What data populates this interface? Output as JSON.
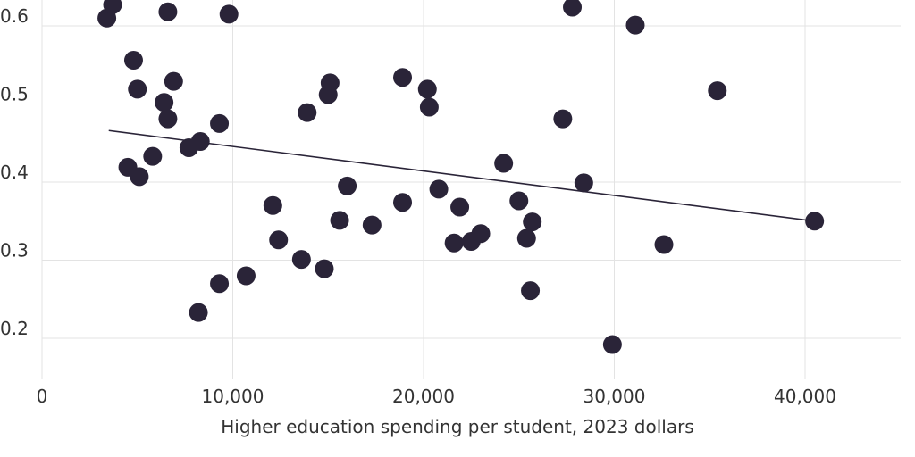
{
  "chart_data": {
    "type": "scatter",
    "xlabel": "Higher education spending per student, 2023 dollars",
    "ylabel": "",
    "xlim": [
      0,
      45000
    ],
    "ylim": [
      0.15,
      0.62
    ],
    "x_ticks": [
      {
        "value": 0,
        "label": "0"
      },
      {
        "value": 10000,
        "label": "10,000"
      },
      {
        "value": 20000,
        "label": "20,000"
      },
      {
        "value": 30000,
        "label": "30,000"
      },
      {
        "value": 40000,
        "label": "40,000"
      }
    ],
    "y_ticks": [
      {
        "value": 0.2,
        "label": "0.2"
      },
      {
        "value": 0.3,
        "label": "0.3"
      },
      {
        "value": 0.4,
        "label": "0.4"
      },
      {
        "value": 0.5,
        "label": "0.5"
      },
      {
        "value": 0.6,
        "label": "0.6"
      }
    ],
    "grid": true,
    "point_color": "#2a2438",
    "trendline": {
      "x": [
        3500,
        40500
      ],
      "y": [
        0.466,
        0.35
      ]
    },
    "points": [
      {
        "x": 3400,
        "y": 0.61
      },
      {
        "x": 3700,
        "y": 0.627
      },
      {
        "x": 6600,
        "y": 0.618
      },
      {
        "x": 9800,
        "y": 0.615
      },
      {
        "x": 27800,
        "y": 0.624
      },
      {
        "x": 31100,
        "y": 0.601
      },
      {
        "x": 4800,
        "y": 0.556
      },
      {
        "x": 5000,
        "y": 0.519
      },
      {
        "x": 6900,
        "y": 0.529
      },
      {
        "x": 6400,
        "y": 0.502
      },
      {
        "x": 6600,
        "y": 0.481
      },
      {
        "x": 15100,
        "y": 0.527
      },
      {
        "x": 15000,
        "y": 0.512
      },
      {
        "x": 13900,
        "y": 0.489
      },
      {
        "x": 9300,
        "y": 0.475
      },
      {
        "x": 18900,
        "y": 0.534
      },
      {
        "x": 20200,
        "y": 0.519
      },
      {
        "x": 20300,
        "y": 0.496
      },
      {
        "x": 35400,
        "y": 0.517
      },
      {
        "x": 27300,
        "y": 0.481
      },
      {
        "x": 8300,
        "y": 0.452
      },
      {
        "x": 7700,
        "y": 0.444
      },
      {
        "x": 5800,
        "y": 0.433
      },
      {
        "x": 4500,
        "y": 0.419
      },
      {
        "x": 5100,
        "y": 0.407
      },
      {
        "x": 24200,
        "y": 0.424
      },
      {
        "x": 28400,
        "y": 0.399
      },
      {
        "x": 16000,
        "y": 0.395
      },
      {
        "x": 20800,
        "y": 0.391
      },
      {
        "x": 18900,
        "y": 0.374
      },
      {
        "x": 25000,
        "y": 0.376
      },
      {
        "x": 21900,
        "y": 0.368
      },
      {
        "x": 12100,
        "y": 0.37
      },
      {
        "x": 15600,
        "y": 0.351
      },
      {
        "x": 17300,
        "y": 0.345
      },
      {
        "x": 25700,
        "y": 0.349
      },
      {
        "x": 40500,
        "y": 0.35
      },
      {
        "x": 12400,
        "y": 0.326
      },
      {
        "x": 21600,
        "y": 0.322
      },
      {
        "x": 22500,
        "y": 0.324
      },
      {
        "x": 23000,
        "y": 0.334
      },
      {
        "x": 25400,
        "y": 0.328
      },
      {
        "x": 32600,
        "y": 0.32
      },
      {
        "x": 13600,
        "y": 0.301
      },
      {
        "x": 14800,
        "y": 0.289
      },
      {
        "x": 10700,
        "y": 0.28
      },
      {
        "x": 9300,
        "y": 0.27
      },
      {
        "x": 25600,
        "y": 0.261
      },
      {
        "x": 8200,
        "y": 0.233
      },
      {
        "x": 29900,
        "y": 0.192
      }
    ]
  }
}
